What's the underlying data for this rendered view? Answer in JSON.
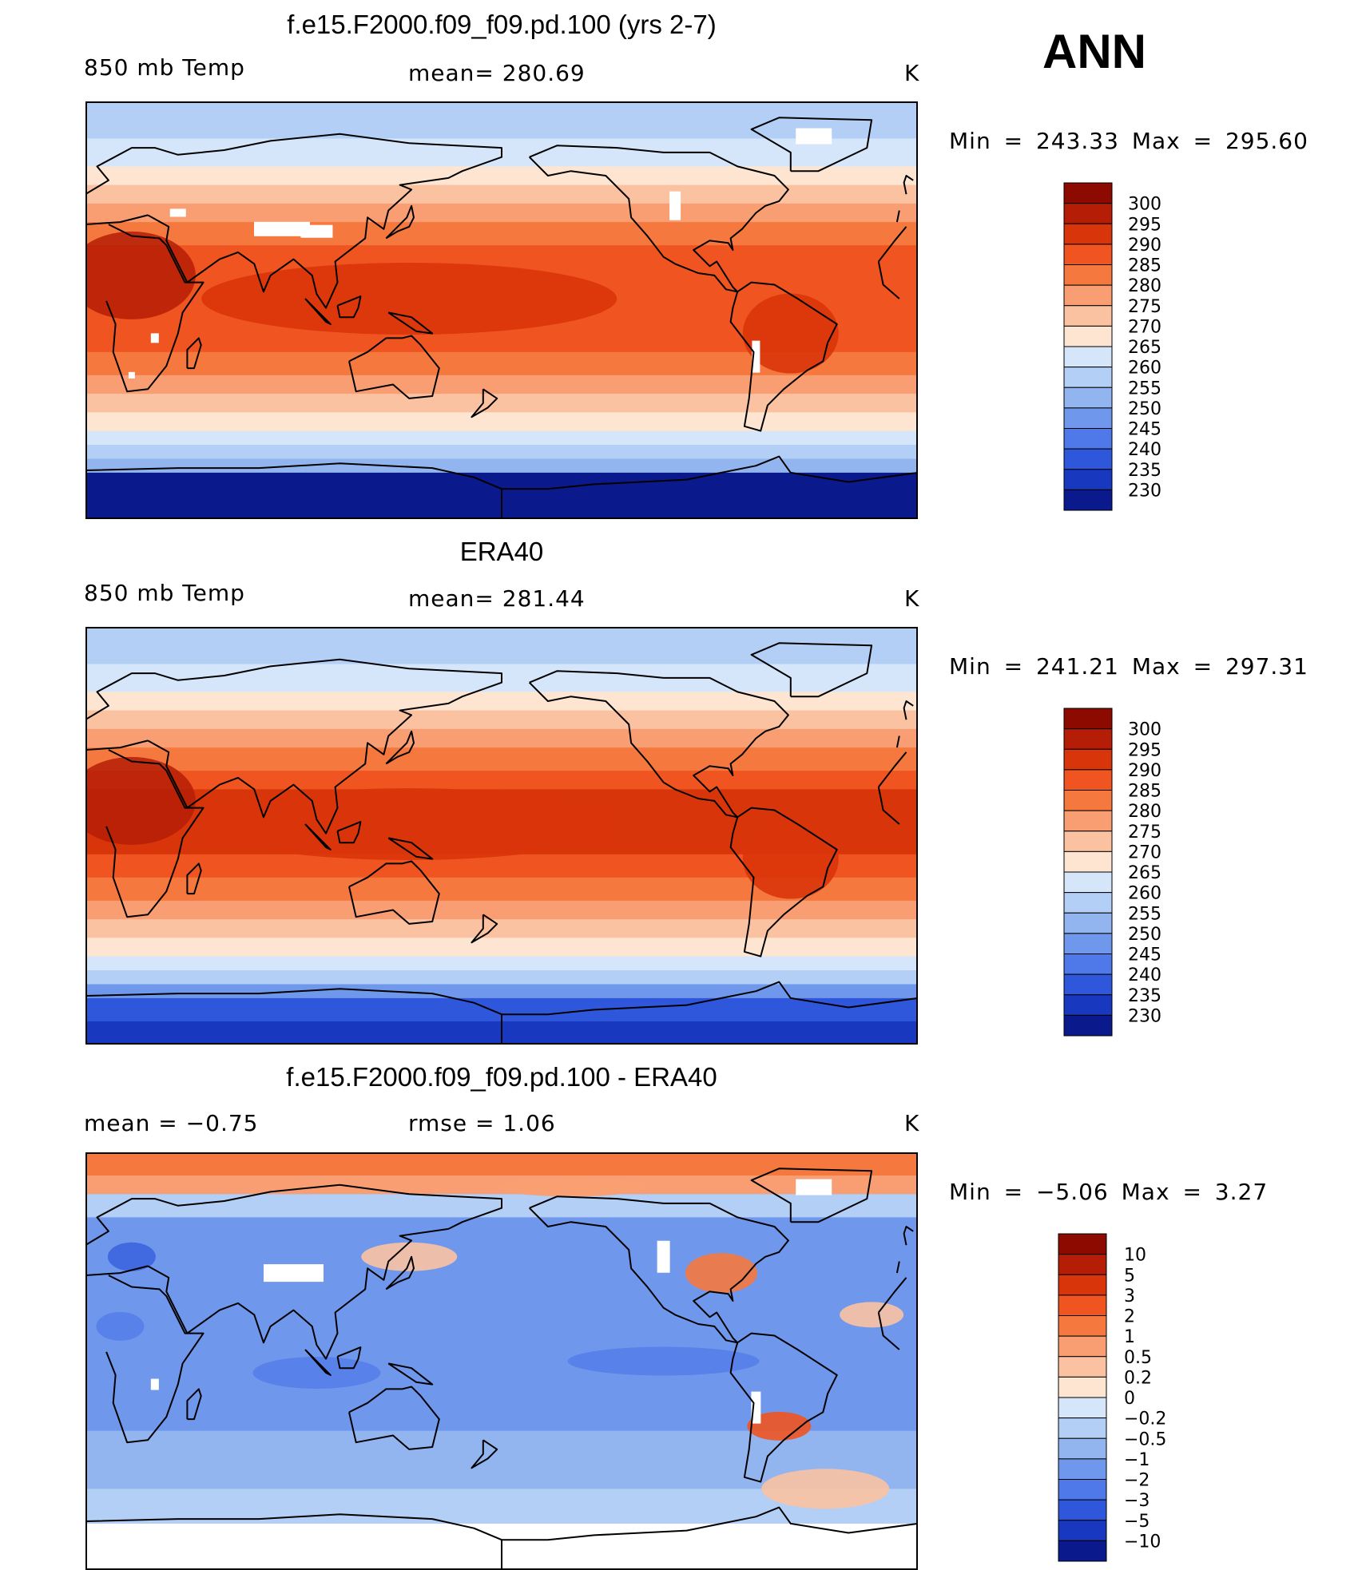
{
  "season": "ANN",
  "panels": [
    {
      "title": "f.e15.F2000.f09_f09.pd.100 (yrs 2-7)",
      "left_label": "850 mb Temp",
      "center_label": "mean= 280.69",
      "units": "K",
      "minmax": "Min = 243.33 Max = 295.60",
      "colorbar": {
        "labels": [
          "300",
          "295",
          "290",
          "285",
          "280",
          "275",
          "270",
          "265",
          "260",
          "255",
          "250",
          "245",
          "240",
          "235",
          "230"
        ],
        "colors": [
          "#8c0a00",
          "#b51d06",
          "#d9350a",
          "#f05420",
          "#f5793f",
          "#f99e72",
          "#fbc2a2",
          "#fde5d2",
          "#d5e6fa",
          "#b3cff5",
          "#92b5f0",
          "#6f98ec",
          "#4f78e8",
          "#2f57dc",
          "#1838c0",
          "#0a1a8c"
        ]
      },
      "map_type": "absolute"
    },
    {
      "title": "ERA40",
      "left_label": "850 mb Temp",
      "center_label": "mean= 281.44",
      "units": "K",
      "minmax": "Min = 241.21 Max = 297.31",
      "colorbar": {
        "labels": [
          "300",
          "295",
          "290",
          "285",
          "280",
          "275",
          "270",
          "265",
          "260",
          "255",
          "250",
          "245",
          "240",
          "235",
          "230"
        ],
        "colors": [
          "#8c0a00",
          "#b51d06",
          "#d9350a",
          "#f05420",
          "#f5793f",
          "#f99e72",
          "#fbc2a2",
          "#fde5d2",
          "#d5e6fa",
          "#b3cff5",
          "#92b5f0",
          "#6f98ec",
          "#4f78e8",
          "#2f57dc",
          "#1838c0",
          "#0a1a8c"
        ]
      },
      "map_type": "absolute"
    },
    {
      "title": "f.e15.F2000.f09_f09.pd.100 - ERA40",
      "left_label": "mean = −0.75",
      "center_label": "rmse = 1.06",
      "units": "K",
      "minmax": "Min = −5.06 Max = 3.27",
      "colorbar": {
        "labels": [
          "10",
          "5",
          "3",
          "2",
          "1",
          "0.5",
          "0.2",
          "0",
          "−0.2",
          "−0.5",
          "−1",
          "−2",
          "−3",
          "−5",
          "−10"
        ],
        "colors": [
          "#8c0a00",
          "#b51d06",
          "#d9350a",
          "#f05420",
          "#f5793f",
          "#f99e72",
          "#fbc2a2",
          "#fde5d2",
          "#d5e6fa",
          "#b3cff5",
          "#92b5f0",
          "#6f98ec",
          "#4f78e8",
          "#2f57dc",
          "#1838c0",
          "#0a1a8c"
        ]
      },
      "map_type": "difference"
    }
  ]
}
